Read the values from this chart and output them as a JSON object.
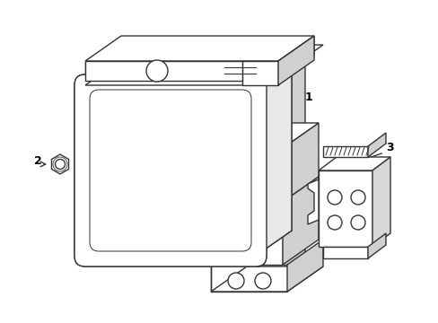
{
  "background_color": "#ffffff",
  "line_color": "#333333",
  "line_width": 1.0,
  "label_font_size": 8,
  "label_color": "#000000"
}
